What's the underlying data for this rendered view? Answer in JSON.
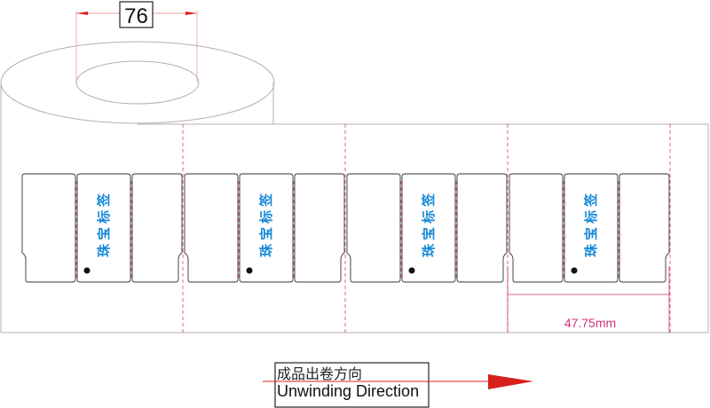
{
  "core_dimension": "76",
  "label_pitch": "47.75mm",
  "label_text": "珠宝标签",
  "direction": {
    "chinese": "成品出卷方向",
    "english": "Unwinding Direction"
  },
  "label_groups": 4,
  "colors": {
    "outline": "#333333",
    "roll": "#b0b0b0",
    "cut_line": "#d04070",
    "dimension": "#d0307a",
    "label_text": "#1a8ad8",
    "arrow": "#d8201c"
  }
}
